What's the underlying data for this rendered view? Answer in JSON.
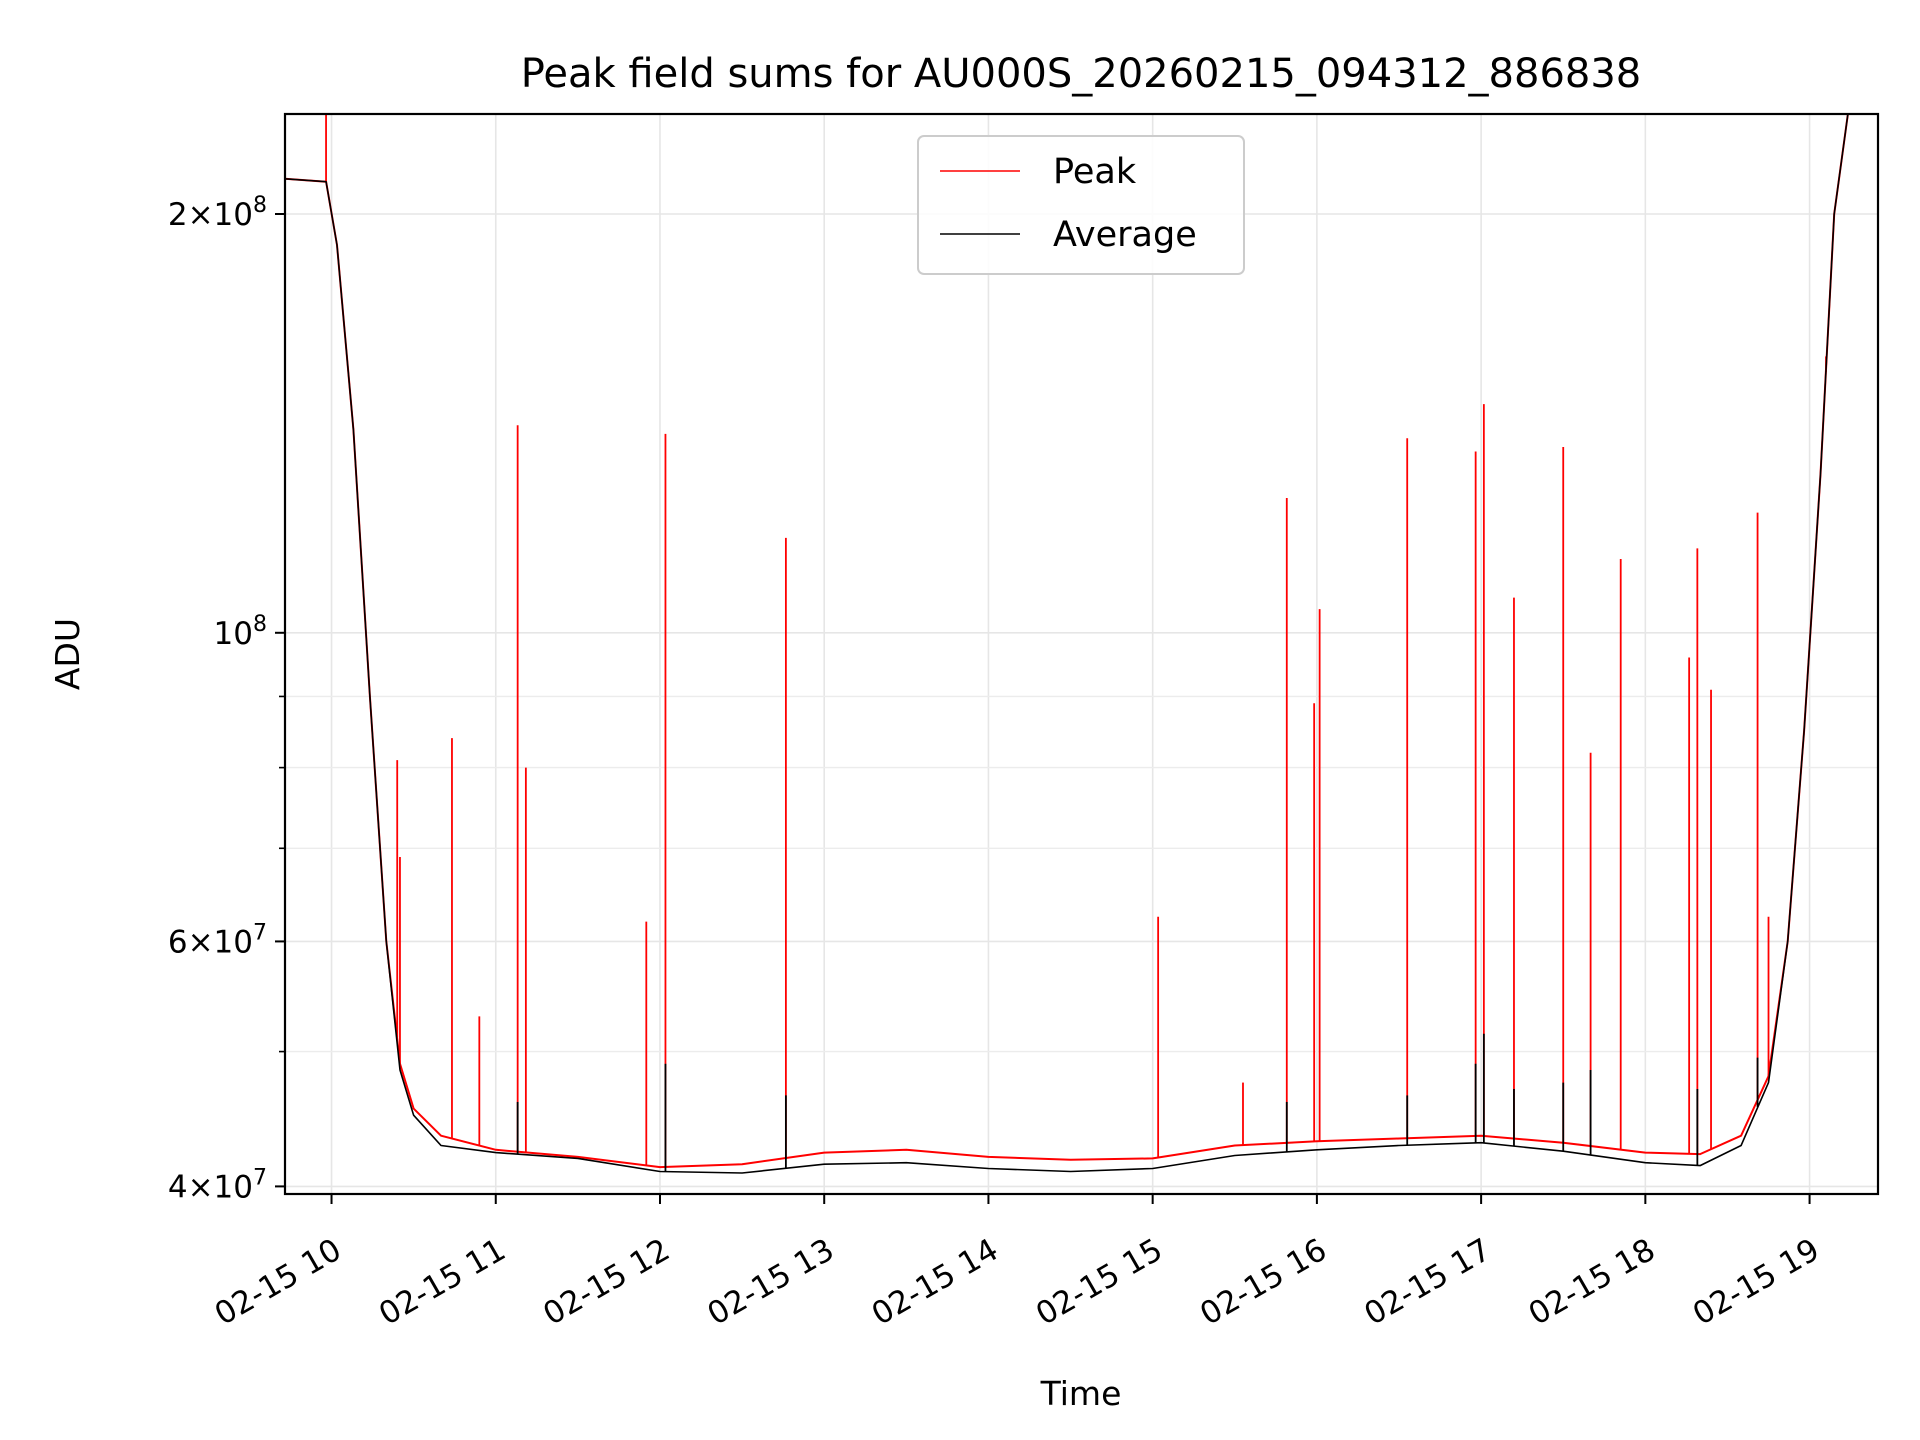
{
  "chart_data": {
    "type": "line",
    "title": "Peak field sums for AU000S_20260215_094312_886838",
    "xlabel": "Time",
    "ylabel": "ADU",
    "y_scale": "log",
    "ylim": [
      39500000,
      236000000
    ],
    "xlim": [
      "2026-02-15 09:43",
      "2026-02-15 19:25"
    ],
    "x_ticks": [
      {
        "value": "2026-02-15 10:00",
        "label": "02-15 10"
      },
      {
        "value": "2026-02-15 11:00",
        "label": "02-15 11"
      },
      {
        "value": "2026-02-15 12:00",
        "label": "02-15 12"
      },
      {
        "value": "2026-02-15 13:00",
        "label": "02-15 13"
      },
      {
        "value": "2026-02-15 14:00",
        "label": "02-15 14"
      },
      {
        "value": "2026-02-15 15:00",
        "label": "02-15 15"
      },
      {
        "value": "2026-02-15 16:00",
        "label": "02-15 16"
      },
      {
        "value": "2026-02-15 17:00",
        "label": "02-15 17"
      },
      {
        "value": "2026-02-15 18:00",
        "label": "02-15 18"
      },
      {
        "value": "2026-02-15 19:00",
        "label": "02-15 19"
      }
    ],
    "y_major_ticks": [
      {
        "value": 40000000,
        "mantissa": "4",
        "exp": "7"
      },
      {
        "value": 60000000,
        "mantissa": "6",
        "exp": "7"
      },
      {
        "value": 100000000,
        "mantissa": "",
        "exp": "8"
      },
      {
        "value": 200000000,
        "mantissa": "2",
        "exp": "8"
      }
    ],
    "y_minor_ticks": [
      50000000,
      70000000,
      80000000,
      90000000
    ],
    "grid": true,
    "legend": {
      "position": "top-center"
    },
    "series": [
      {
        "name": "Peak",
        "color": "#ff0000",
        "baseline_points": [
          [
            "2026-02-15 09:43",
            212000000
          ],
          [
            "2026-02-15 09:58",
            211000000
          ],
          [
            "2026-02-15 10:02",
            190000000
          ],
          [
            "2026-02-15 10:08",
            140000000
          ],
          [
            "2026-02-15 10:14",
            90000000
          ],
          [
            "2026-02-15 10:20",
            60000000
          ],
          [
            "2026-02-15 10:25",
            49000000
          ],
          [
            "2026-02-15 10:30",
            45500000
          ],
          [
            "2026-02-15 10:40",
            43500000
          ],
          [
            "2026-02-15 11:00",
            42500000
          ],
          [
            "2026-02-15 11:30",
            42000000
          ],
          [
            "2026-02-15 12:00",
            41300000
          ],
          [
            "2026-02-15 12:30",
            41500000
          ],
          [
            "2026-02-15 13:00",
            42300000
          ],
          [
            "2026-02-15 13:30",
            42500000
          ],
          [
            "2026-02-15 14:00",
            42000000
          ],
          [
            "2026-02-15 14:30",
            41800000
          ],
          [
            "2026-02-15 15:00",
            41900000
          ],
          [
            "2026-02-15 15:30",
            42800000
          ],
          [
            "2026-02-15 16:00",
            43100000
          ],
          [
            "2026-02-15 16:30",
            43300000
          ],
          [
            "2026-02-15 17:00",
            43500000
          ],
          [
            "2026-02-15 17:30",
            43000000
          ],
          [
            "2026-02-15 18:00",
            42300000
          ],
          [
            "2026-02-15 18:20",
            42200000
          ],
          [
            "2026-02-15 18:35",
            43500000
          ],
          [
            "2026-02-15 18:45",
            48000000
          ],
          [
            "2026-02-15 18:52",
            60000000
          ],
          [
            "2026-02-15 18:58",
            85000000
          ],
          [
            "2026-02-15 19:04",
            130000000
          ],
          [
            "2026-02-15 19:09",
            200000000
          ],
          [
            "2026-02-15 19:14",
            236000000
          ]
        ],
        "spikes": [
          [
            "2026-02-15 09:58",
            236000000
          ],
          [
            "2026-02-15 10:24",
            81000000
          ],
          [
            "2026-02-15 10:25",
            69000000
          ],
          [
            "2026-02-15 10:44",
            84000000
          ],
          [
            "2026-02-15 10:54",
            53000000
          ],
          [
            "2026-02-15 11:08",
            141000000
          ],
          [
            "2026-02-15 11:11",
            80000000
          ],
          [
            "2026-02-15 11:55",
            62000000
          ],
          [
            "2026-02-15 12:02",
            139000000
          ],
          [
            "2026-02-15 12:46",
            117000000
          ],
          [
            "2026-02-15 15:02",
            62500000
          ],
          [
            "2026-02-15 15:33",
            47500000
          ],
          [
            "2026-02-15 15:49",
            125000000
          ],
          [
            "2026-02-15 15:59",
            89000000
          ],
          [
            "2026-02-15 16:01",
            104000000
          ],
          [
            "2026-02-15 16:33",
            138000000
          ],
          [
            "2026-02-15 16:58",
            135000000
          ],
          [
            "2026-02-15 17:01",
            146000000
          ],
          [
            "2026-02-15 17:12",
            106000000
          ],
          [
            "2026-02-15 17:30",
            136000000
          ],
          [
            "2026-02-15 17:40",
            82000000
          ],
          [
            "2026-02-15 17:51",
            113000000
          ],
          [
            "2026-02-15 18:16",
            96000000
          ],
          [
            "2026-02-15 18:19",
            115000000
          ],
          [
            "2026-02-15 18:24",
            91000000
          ],
          [
            "2026-02-15 18:41",
            122000000
          ],
          [
            "2026-02-15 18:45",
            62500000
          ],
          [
            "2026-02-15 19:06",
            154000000
          ]
        ]
      },
      {
        "name": "Average",
        "color": "#000000",
        "baseline_points": [
          [
            "2026-02-15 09:43",
            212000000
          ],
          [
            "2026-02-15 09:58",
            211000000
          ],
          [
            "2026-02-15 10:02",
            190000000
          ],
          [
            "2026-02-15 10:08",
            140000000
          ],
          [
            "2026-02-15 10:14",
            90000000
          ],
          [
            "2026-02-15 10:20",
            60000000
          ],
          [
            "2026-02-15 10:25",
            48500000
          ],
          [
            "2026-02-15 10:30",
            45000000
          ],
          [
            "2026-02-15 10:40",
            42800000
          ],
          [
            "2026-02-15 11:00",
            42300000
          ],
          [
            "2026-02-15 11:30",
            41900000
          ],
          [
            "2026-02-15 12:00",
            41000000
          ],
          [
            "2026-02-15 12:30",
            40900000
          ],
          [
            "2026-02-15 13:00",
            41500000
          ],
          [
            "2026-02-15 13:30",
            41600000
          ],
          [
            "2026-02-15 14:00",
            41200000
          ],
          [
            "2026-02-15 14:30",
            41000000
          ],
          [
            "2026-02-15 15:00",
            41200000
          ],
          [
            "2026-02-15 15:30",
            42100000
          ],
          [
            "2026-02-15 16:00",
            42500000
          ],
          [
            "2026-02-15 16:30",
            42800000
          ],
          [
            "2026-02-15 17:00",
            43000000
          ],
          [
            "2026-02-15 17:30",
            42400000
          ],
          [
            "2026-02-15 18:00",
            41600000
          ],
          [
            "2026-02-15 18:20",
            41400000
          ],
          [
            "2026-02-15 18:35",
            42800000
          ],
          [
            "2026-02-15 18:45",
            47500000
          ],
          [
            "2026-02-15 18:52",
            60000000
          ],
          [
            "2026-02-15 18:58",
            85000000
          ],
          [
            "2026-02-15 19:04",
            130000000
          ],
          [
            "2026-02-15 19:09",
            200000000
          ],
          [
            "2026-02-15 19:14",
            236000000
          ]
        ],
        "spikes": [
          [
            "2026-02-15 11:08",
            46000000
          ],
          [
            "2026-02-15 12:02",
            49000000
          ],
          [
            "2026-02-15 12:46",
            46500000
          ],
          [
            "2026-02-15 15:49",
            46000000
          ],
          [
            "2026-02-15 16:33",
            46500000
          ],
          [
            "2026-02-15 16:58",
            49000000
          ],
          [
            "2026-02-15 17:01",
            51500000
          ],
          [
            "2026-02-15 17:12",
            47000000
          ],
          [
            "2026-02-15 17:30",
            47500000
          ],
          [
            "2026-02-15 17:40",
            48500000
          ],
          [
            "2026-02-15 18:19",
            47000000
          ],
          [
            "2026-02-15 18:41",
            49500000
          ]
        ]
      }
    ]
  }
}
